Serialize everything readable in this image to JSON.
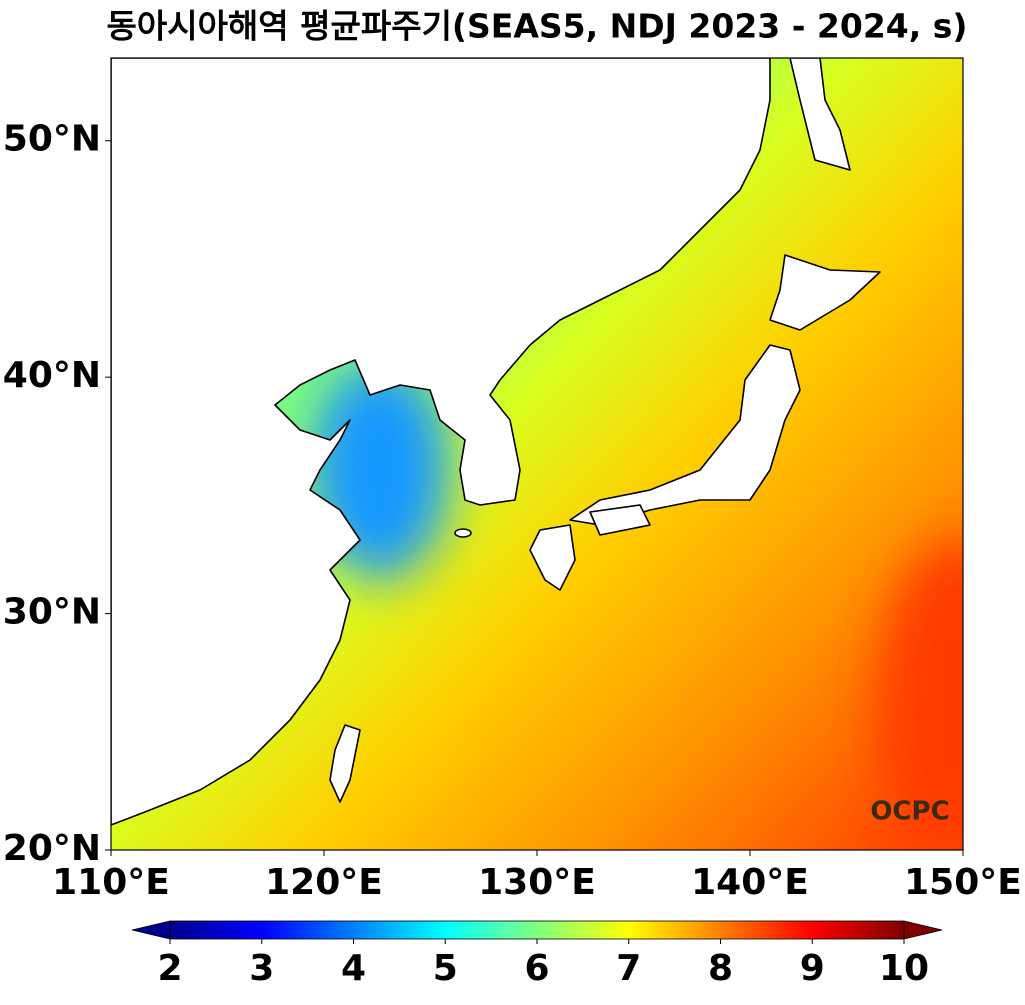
{
  "title": "동아시아해역 평균파주기(SEAS5, NDJ 2023 - 2024, s)",
  "map": {
    "xlim": [
      110,
      150
    ],
    "ylim": [
      20,
      53.5
    ],
    "xticks": [
      {
        "value": 110,
        "label": "110°E"
      },
      {
        "value": 120,
        "label": "120°E"
      },
      {
        "value": 130,
        "label": "130°E"
      },
      {
        "value": 140,
        "label": "140°E"
      },
      {
        "value": 150,
        "label": "150°E"
      }
    ],
    "yticks": [
      {
        "value": 20,
        "label": "20°N"
      },
      {
        "value": 30,
        "label": "30°N"
      },
      {
        "value": 40,
        "label": "40°N"
      },
      {
        "value": 50,
        "label": "50°N"
      }
    ],
    "watermark": "OCPC"
  },
  "colorbar": {
    "lim": [
      2,
      10
    ],
    "ticks": [
      2,
      3,
      4,
      5,
      6,
      7,
      8,
      9,
      10
    ],
    "extend": "both"
  }
}
